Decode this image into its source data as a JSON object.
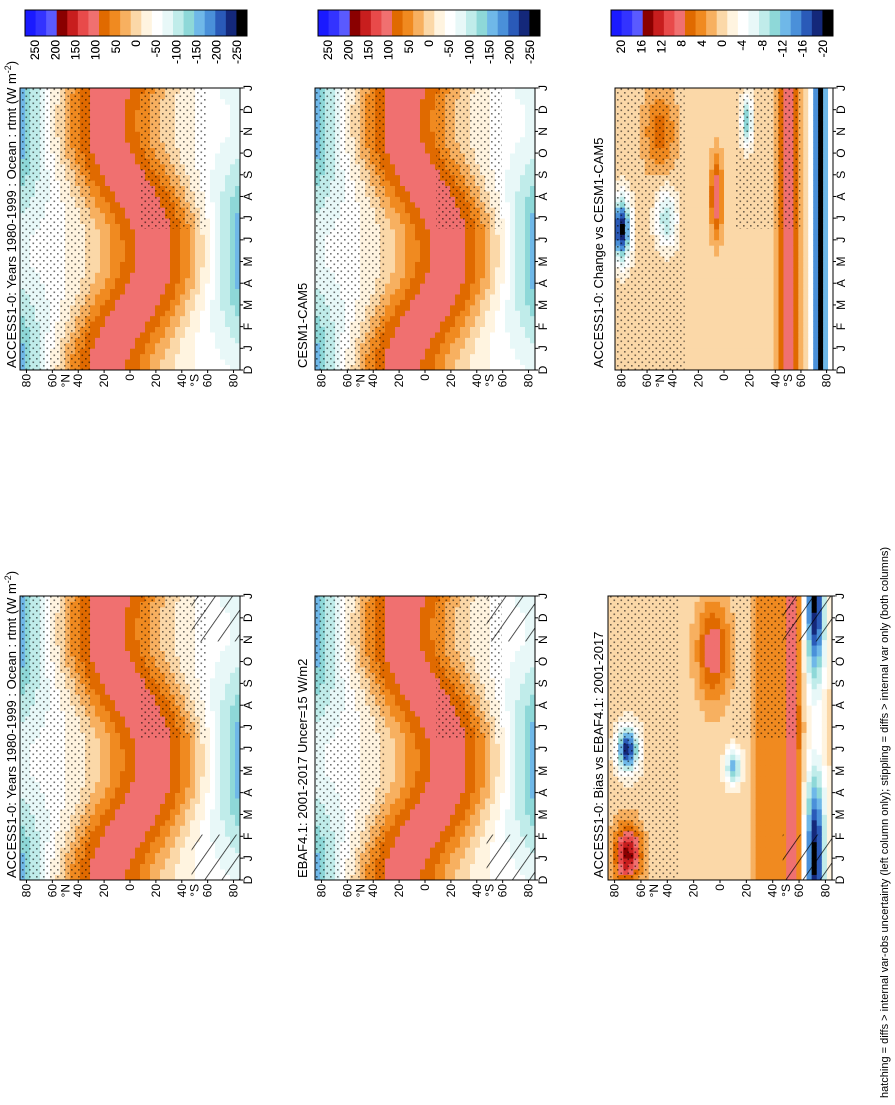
{
  "footnote": "hatching = diffs > internal var-obs uncertainty (left column only); stippling = diffs > internal var only (both columns)",
  "colors": {
    "anomaly_scale": [
      "#1a1aff",
      "#3333ff",
      "#5a5aff",
      "#8a0000",
      "#c81e1e",
      "#e84a4a",
      "#f07070",
      "#e06a00",
      "#f08a20",
      "#f7b060",
      "#fbd8a8",
      "#fff4e0",
      "#ffffff",
      "#e8f8f8",
      "#c0ecea",
      "#8ed8d8",
      "#6fb8e8",
      "#4a90d9",
      "#2a5ab8",
      "#14287a",
      "#000000"
    ]
  },
  "chart_data": [
    {
      "id": "obs",
      "type": "heatmap",
      "title_plain": "EBAF4.1: 2001-2017 Uncer=15 W/m2",
      "title_parts": null,
      "months": [
        "D",
        "J",
        "F",
        "M",
        "A",
        "M",
        "J",
        "J",
        "A",
        "S",
        "O",
        "N",
        "D",
        "J"
      ],
      "lat_ticks": [
        "80",
        "60",
        "40",
        "20",
        "0",
        "20",
        "40",
        "60",
        "80"
      ],
      "hemisphere_labels": [
        "°N",
        "°S"
      ],
      "colorbar": {
        "ticks": [
          "250",
          "200",
          "150",
          "100",
          "50",
          "0",
          "-50",
          "-100",
          "-150",
          "-200",
          "-250"
        ]
      },
      "field": "rtmt",
      "units": "W m-2",
      "peak_values": {
        "south_summer_max": 150,
        "north_summer_max": 125,
        "polar_min": -200
      }
    },
    {
      "id": "model-left",
      "type": "heatmap",
      "title_parts": [
        "ACCESS1-0: Years 1980-1999 : Ocean : rtmt (W m",
        "-2",
        ")"
      ],
      "title_plain": null,
      "months": [
        "D",
        "J",
        "F",
        "M",
        "A",
        "M",
        "J",
        "J",
        "A",
        "S",
        "O",
        "N",
        "D",
        "J"
      ],
      "lat_ticks": [
        "80",
        "60",
        "40",
        "20",
        "0",
        "20",
        "40",
        "60",
        "80"
      ],
      "hemisphere_labels": [
        "°N",
        "°S"
      ],
      "colorbar": {
        "ticks": [
          "250",
          "200",
          "150",
          "100",
          "50",
          "0",
          "-50",
          "-100",
          "-150",
          "-200",
          "-250"
        ]
      },
      "field": "rtmt",
      "units": "W m-2",
      "peak_values": {
        "south_summer_max": 150,
        "north_summer_max": 130,
        "polar_min": -210
      }
    },
    {
      "id": "bias",
      "type": "heatmap",
      "title_plain": "ACCESS1-0: Bias vs EBAF4.1: 2001-2017",
      "title_parts": null,
      "months": [
        "D",
        "J",
        "F",
        "M",
        "A",
        "M",
        "J",
        "J",
        "A",
        "S",
        "O",
        "N",
        "D",
        "J"
      ],
      "lat_ticks": [
        "80",
        "60",
        "40",
        "20",
        "0",
        "20",
        "40",
        "60",
        "80"
      ],
      "hemisphere_labels": [
        "°N",
        "°S"
      ],
      "colorbar": {
        "ticks": [
          "20",
          "16",
          "12",
          "8",
          "4",
          "0",
          "-4",
          "-8",
          "-12",
          "-16",
          "-20"
        ]
      },
      "field": "rtmt bias",
      "units": "W m-2",
      "peak_values": {
        "max": 20,
        "min": -20
      }
    },
    {
      "id": "model-right",
      "type": "heatmap",
      "title_parts": [
        "ACCESS1-0: Years 1980-1999 : Ocean : rtmt (W m",
        "-2",
        ")"
      ],
      "title_plain": null,
      "months": [
        "D",
        "J",
        "F",
        "M",
        "A",
        "M",
        "J",
        "J",
        "A",
        "S",
        "O",
        "N",
        "D",
        "J"
      ],
      "lat_ticks": [
        "80",
        "60",
        "40",
        "20",
        "0",
        "20",
        "40",
        "60",
        "80"
      ],
      "hemisphere_labels": [
        "°N",
        "°S"
      ],
      "colorbar": {
        "ticks": [
          "250",
          "200",
          "150",
          "100",
          "50",
          "0",
          "-50",
          "-100",
          "-150",
          "-200",
          "-250"
        ]
      },
      "field": "rtmt",
      "units": "W m-2",
      "peak_values": {
        "south_summer_max": 150,
        "north_summer_max": 130,
        "polar_min": -210
      }
    },
    {
      "id": "ref",
      "type": "heatmap",
      "title_plain": "CESM1-CAM5",
      "title_parts": null,
      "months": [
        "D",
        "J",
        "F",
        "M",
        "A",
        "M",
        "J",
        "J",
        "A",
        "S",
        "O",
        "N",
        "D",
        "J"
      ],
      "lat_ticks": [
        "80",
        "60",
        "40",
        "20",
        "0",
        "20",
        "40",
        "60",
        "80"
      ],
      "hemisphere_labels": [
        "°N",
        "°S"
      ],
      "colorbar": {
        "ticks": [
          "250",
          "200",
          "150",
          "100",
          "50",
          "0",
          "-50",
          "-100",
          "-150",
          "-200",
          "-250"
        ]
      },
      "field": "rtmt",
      "units": "W m-2",
      "peak_values": {
        "south_summer_max": 150,
        "north_summer_max": 130,
        "polar_min": -200
      }
    },
    {
      "id": "change",
      "type": "heatmap",
      "title_plain": "ACCESS1-0: Change vs CESM1-CAM5",
      "title_parts": null,
      "months": [
        "D",
        "J",
        "F",
        "M",
        "A",
        "M",
        "J",
        "J",
        "A",
        "S",
        "O",
        "N",
        "D",
        "J"
      ],
      "lat_ticks": [
        "80",
        "60",
        "40",
        "20",
        "0",
        "20",
        "40",
        "60",
        "80"
      ],
      "hemisphere_labels": [
        "°N",
        "°S"
      ],
      "colorbar": {
        "ticks": [
          "20",
          "16",
          "12",
          "8",
          "4",
          "0",
          "-4",
          "-8",
          "-12",
          "-16",
          "-20"
        ]
      },
      "field": "rtmt change",
      "units": "W m-2",
      "peak_values": {
        "max": 20,
        "min": -20
      }
    }
  ]
}
